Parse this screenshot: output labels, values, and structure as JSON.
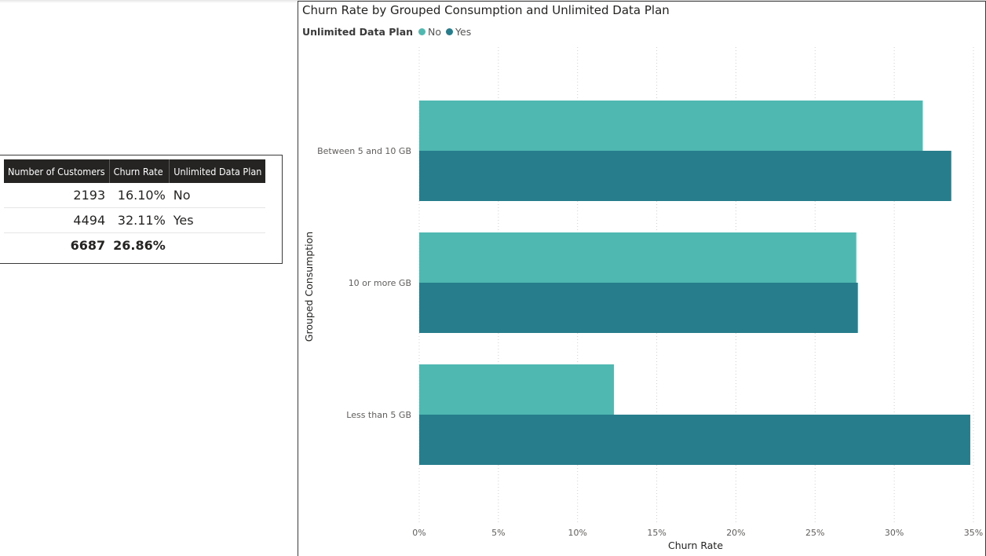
{
  "table": {
    "headers": [
      "Number of Customers",
      "Churn Rate",
      "Unlimited Data Plan"
    ],
    "rows": [
      {
        "customers": "2193",
        "churn_rate": "16.10%",
        "plan": "No"
      },
      {
        "customers": "4494",
        "churn_rate": "32.11%",
        "plan": "Yes"
      }
    ],
    "total": {
      "customers": "6687",
      "churn_rate": "26.86%",
      "plan": ""
    }
  },
  "chart_data": {
    "type": "bar",
    "orientation": "horizontal",
    "title": "Churn Rate by Grouped Consumption and Unlimited Data Plan",
    "legend_title": "Unlimited Data Plan",
    "legend_position": "top-left",
    "xlabel": "Churn Rate",
    "ylabel": "Grouped Consumption",
    "categories": [
      "Between 5 and 10 GB",
      "10 or more GB",
      "Less than 5 GB"
    ],
    "series": [
      {
        "name": "No",
        "color": "#4fb8b0",
        "values": [
          31.8,
          27.6,
          12.3
        ]
      },
      {
        "name": "Yes",
        "color": "#287d8c",
        "values": [
          33.6,
          27.7,
          34.8
        ]
      }
    ],
    "xlim": [
      0,
      35
    ],
    "xticks": [
      "0%",
      "5%",
      "10%",
      "15%",
      "20%",
      "25%",
      "30%",
      "35%"
    ],
    "grid": "vertical dotted"
  }
}
